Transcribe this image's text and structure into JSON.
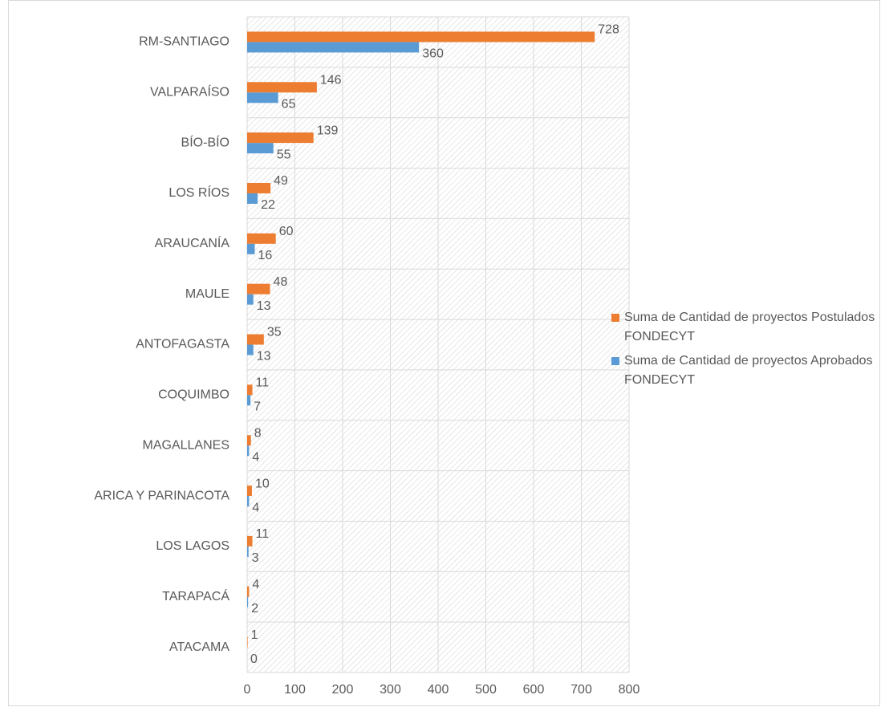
{
  "chart_data": {
    "type": "bar",
    "orientation": "horizontal",
    "categories": [
      "RM-SANTIAGO",
      "VALPARAÍSO",
      "BÍO-BÍO",
      "LOS RÍOS",
      "ARAUCANÍA",
      "MAULE",
      "ANTOFAGASTA",
      "COQUIMBO",
      "MAGALLANES",
      "ARICA Y PARINACOTA",
      "LOS LAGOS",
      "TARAPACÁ",
      "ATACAMA"
    ],
    "series": [
      {
        "name": "Suma de Cantidad de proyectos Postulados  FONDECYT",
        "color": "#ed7d31",
        "values": [
          728,
          146,
          139,
          49,
          60,
          48,
          35,
          11,
          8,
          10,
          11,
          4,
          1
        ]
      },
      {
        "name": "Suma de Cantidad de proyectos Aprobados FONDECYT",
        "color": "#5b9bd5",
        "values": [
          360,
          65,
          55,
          22,
          16,
          13,
          13,
          7,
          4,
          4,
          3,
          2,
          0
        ]
      }
    ],
    "xlim": [
      0,
      800
    ],
    "xticks": [
      0,
      100,
      200,
      300,
      400,
      500,
      600,
      700,
      800
    ],
    "grid": true,
    "legend": "right"
  }
}
